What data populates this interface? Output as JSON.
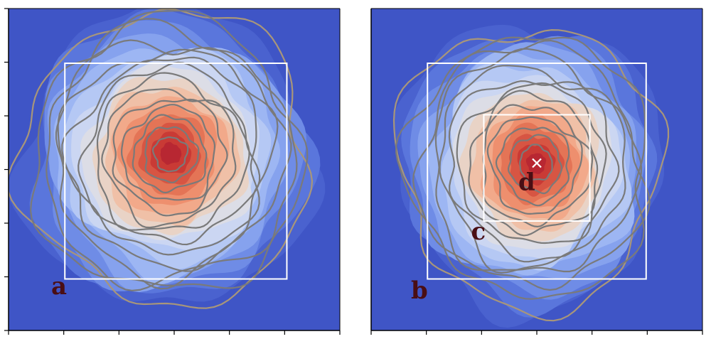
{
  "chart_data": [
    {
      "type": "contour",
      "panel_label": "a",
      "boxes": [
        {
          "label": "",
          "x": [
            0.17,
            0.84
          ],
          "y": [
            0.17,
            0.84
          ],
          "color": "#ffffff"
        }
      ],
      "peak": {
        "x": 0.49,
        "y": 0.45,
        "marker": false,
        "label": ""
      },
      "colormap": "coolwarm",
      "contour_levels": 14
    },
    {
      "type": "contour",
      "panel_label": "b",
      "boxes": [
        {
          "label": "c",
          "x": [
            0.34,
            0.66
          ],
          "y": [
            0.33,
            0.66
          ],
          "color": "#ffffff"
        },
        {
          "label": "",
          "x": [
            0.17,
            0.83
          ],
          "y": [
            0.17,
            0.84
          ],
          "color": "#ffffff"
        }
      ],
      "peak": {
        "x": 0.5,
        "y": 0.48,
        "marker": true,
        "label": "d"
      },
      "colormap": "coolwarm",
      "contour_levels": 13
    }
  ],
  "colors": {
    "background": "#3f55c6",
    "contour_line": "#7a7a7a",
    "outer_line": "#a8967a",
    "letter": "#4a0e14",
    "box": "#ffffff"
  }
}
